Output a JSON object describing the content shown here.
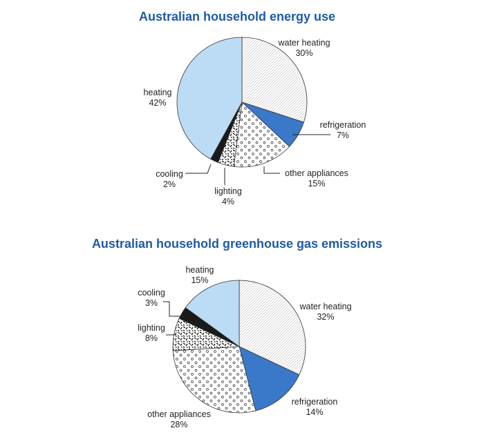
{
  "chart_data": [
    {
      "type": "pie",
      "title": "Australian household energy use",
      "slices": [
        {
          "label": "water heating",
          "value": 30,
          "display": "30%",
          "fill": "#ffffff",
          "pattern": "diagonal-hatch"
        },
        {
          "label": "refrigeration",
          "value": 7,
          "display": "7%",
          "fill": "#3a78c9",
          "pattern": "solid"
        },
        {
          "label": "other appliances",
          "value": 15,
          "display": "15%",
          "fill": "#ffffff",
          "pattern": "circles"
        },
        {
          "label": "lighting",
          "value": 4,
          "display": "4%",
          "fill": "#ffffff",
          "pattern": "dashes"
        },
        {
          "label": "cooling",
          "value": 2,
          "display": "2%",
          "fill": "#1a1a1a",
          "pattern": "solid"
        },
        {
          "label": "heating",
          "value": 42,
          "display": "42%",
          "fill": "#bcdcf5",
          "pattern": "solid"
        }
      ]
    },
    {
      "type": "pie",
      "title": "Australian household greenhouse gas emissions",
      "slices": [
        {
          "label": "water heating",
          "value": 32,
          "display": "32%",
          "fill": "#ffffff",
          "pattern": "diagonal-hatch"
        },
        {
          "label": "refrigeration",
          "value": 14,
          "display": "14%",
          "fill": "#3a78c9",
          "pattern": "solid"
        },
        {
          "label": "other appliances",
          "value": 28,
          "display": "28%",
          "fill": "#ffffff",
          "pattern": "circles"
        },
        {
          "label": "lighting",
          "value": 8,
          "display": "8%",
          "fill": "#ffffff",
          "pattern": "dashes"
        },
        {
          "label": "cooling",
          "value": 3,
          "display": "3%",
          "fill": "#1a1a1a",
          "pattern": "solid"
        },
        {
          "label": "heating",
          "value": 15,
          "display": "15%",
          "fill": "#bcdcf5",
          "pattern": "solid"
        }
      ]
    }
  ],
  "colors": {
    "title": "#1f5aa6",
    "outline": "#333333"
  }
}
